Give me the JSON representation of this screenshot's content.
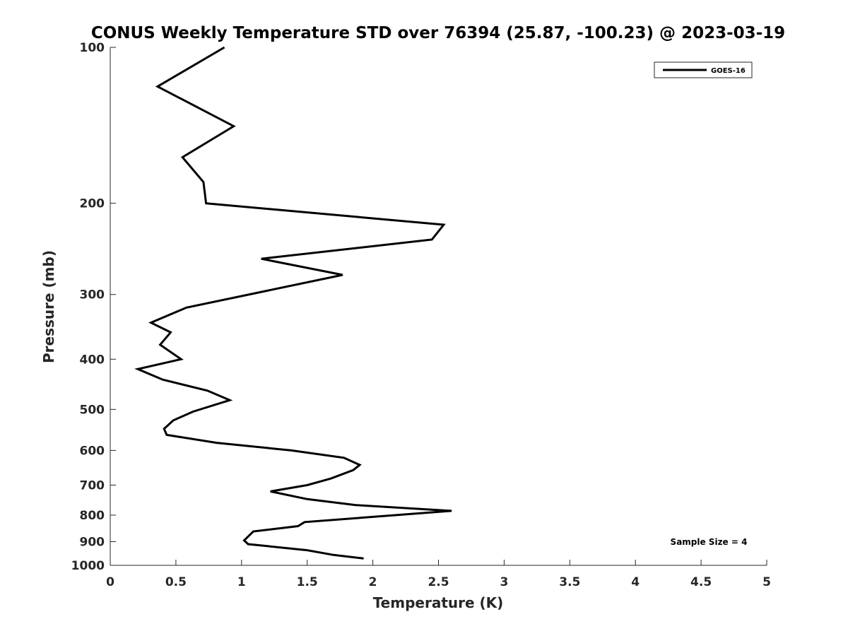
{
  "chart_data": {
    "type": "line",
    "title": "CONUS Weekly Temperature STD over 76394 (25.87, -100.23) @ 2023-03-19",
    "xlabel": "Temperature (K)",
    "ylabel": "Pressure (mb)",
    "xlim": [
      0,
      5
    ],
    "ylim": [
      100,
      1000
    ],
    "y_scale": "log",
    "y_reversed": true,
    "x_ticks": [
      "0",
      "0.5",
      "1",
      "1.5",
      "2",
      "2.5",
      "3",
      "3.5",
      "4",
      "4.5",
      "5"
    ],
    "y_ticks": [
      "100",
      "200",
      "300",
      "400",
      "500",
      "600",
      "700",
      "800",
      "900",
      "1000"
    ],
    "grid": false,
    "legend_position": "top-right",
    "annotation": "Sample Size = 4",
    "series": [
      {
        "name": "GOES-16",
        "color": "#000000",
        "points": [
          [
            0.87,
            100
          ],
          [
            0.36,
            119
          ],
          [
            0.94,
            142
          ],
          [
            0.55,
            163
          ],
          [
            0.71,
            182
          ],
          [
            0.73,
            200
          ],
          [
            2.54,
            220
          ],
          [
            2.45,
            235
          ],
          [
            1.15,
            256
          ],
          [
            1.77,
            275
          ],
          [
            0.58,
            318
          ],
          [
            0.31,
            340
          ],
          [
            0.46,
            355
          ],
          [
            0.38,
            375
          ],
          [
            0.54,
            400
          ],
          [
            0.21,
            418
          ],
          [
            0.4,
            438
          ],
          [
            0.74,
            460
          ],
          [
            0.91,
            480
          ],
          [
            0.63,
            505
          ],
          [
            0.48,
            525
          ],
          [
            0.41,
            545
          ],
          [
            0.43,
            560
          ],
          [
            0.81,
            580
          ],
          [
            1.38,
            600
          ],
          [
            1.78,
            620
          ],
          [
            1.9,
            640
          ],
          [
            1.85,
            655
          ],
          [
            1.68,
            680
          ],
          [
            1.5,
            700
          ],
          [
            1.22,
            720
          ],
          [
            1.5,
            745
          ],
          [
            1.87,
            765
          ],
          [
            2.6,
            785
          ],
          [
            2.17,
            800
          ],
          [
            1.48,
            825
          ],
          [
            1.43,
            840
          ],
          [
            1.09,
            860
          ],
          [
            1.02,
            895
          ],
          [
            1.05,
            910
          ],
          [
            1.5,
            935
          ],
          [
            1.7,
            955
          ],
          [
            1.93,
            970
          ]
        ]
      }
    ]
  }
}
